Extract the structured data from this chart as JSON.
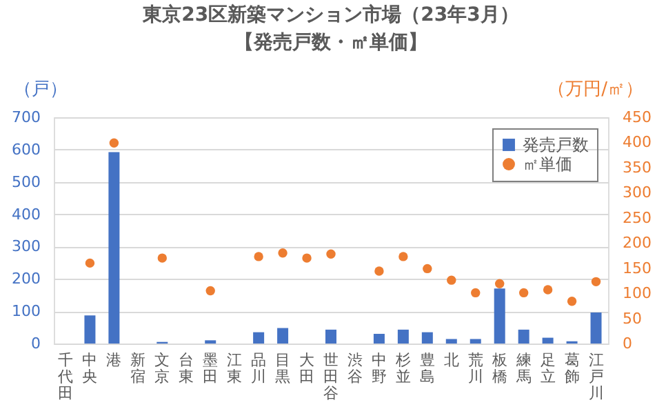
{
  "chart_data": {
    "type": "bar",
    "title": "東京23区新築マンション市場（23年3月）",
    "subtitle": "【発売戸数・㎡単価】",
    "ylabel": "（戸）",
    "y2label": "（万円/㎡）",
    "categories": [
      "千代田",
      "中央",
      "港",
      "新宿",
      "文京",
      "台東",
      "墨田",
      "江東",
      "品川",
      "目黒",
      "大田",
      "世田谷",
      "渋谷",
      "中野",
      "杉並",
      "豊島",
      "北",
      "荒川",
      "板橋",
      "練馬",
      "足立",
      "葛飾",
      "江戸川"
    ],
    "series": [
      {
        "name": "発売戸数",
        "color": "#4472c4",
        "values": [
          null,
          87,
          592,
          null,
          5,
          null,
          10,
          null,
          35,
          48,
          null,
          43,
          null,
          30,
          43,
          35,
          14,
          14,
          170,
          43,
          18,
          7,
          96
        ]
      },
      {
        "name": "㎡単価",
        "type": "scatter",
        "axis": "y2",
        "color": "#ed7d31",
        "values": [
          null,
          160,
          399,
          null,
          170,
          null,
          105,
          null,
          173,
          180,
          170,
          178,
          null,
          144,
          173,
          149,
          126,
          101,
          119,
          101,
          107,
          84,
          123
        ]
      }
    ],
    "ylim": [
      0,
      700
    ],
    "yticks": [
      0,
      100,
      200,
      300,
      400,
      500,
      600,
      700
    ],
    "y2lim": [
      0,
      450
    ],
    "y2ticks": [
      0,
      50,
      100,
      150,
      200,
      250,
      300,
      350,
      400,
      450
    ],
    "grid": "y",
    "legend": "top right",
    "marker": "circle"
  }
}
